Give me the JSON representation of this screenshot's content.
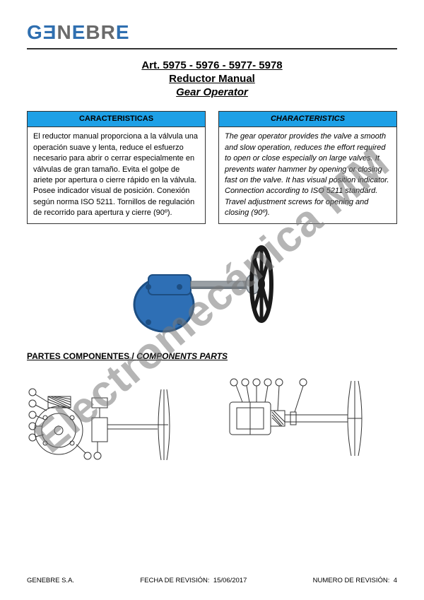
{
  "watermark": {
    "text": "Electromecánica MM",
    "color": "rgba(120,120,120,0.55)"
  },
  "logo": {
    "text_parts": [
      "G",
      "Ǝ",
      "N",
      "E",
      "B",
      "R",
      "E"
    ],
    "colors": {
      "primary": "#2f6fb0",
      "alt": "#6a6a6a"
    },
    "font_size": 28
  },
  "title": {
    "line1": "Art.  5975 - 5976 - 5977- 5978",
    "line2": "Reductor Manual",
    "line3": "Gear Operator"
  },
  "columns": {
    "header_bg": "#1ea0e6",
    "left": {
      "header": "CARACTERISTICAS",
      "body": "El reductor manual proporciona a la válvula una operación suave y lenta, reduce el esfuerzo necesario para abrir o cerrar especialmente en válvulas de gran tamaño. Evita el golpe de ariete por apertura o cierre rápido en la válvula. Posee indicador visual de posición. Conexión según norma ISO 5211. Tornillos de regulación de recorrido para apertura y cierre (90º)."
    },
    "right": {
      "header": "CHARACTERISTICS",
      "body": "The gear operator provides the valve a smooth and slow operation, reduces the effort required to open or close especially on large valves. It prevents water hammer by opening or closing fast on the valve. It has visual position indicator. Connection according to ISO 5211 standard. Travel adjustment screws for opening and closing (90º)."
    }
  },
  "product_figure": {
    "gearbox_color": "#2e6fb5",
    "gearbox_shadow": "#1d4e82",
    "wheel_color": "#1a1a1a",
    "shaft_color": "#9aa0a5",
    "hub_color": "#b8bfc4"
  },
  "section_heading": {
    "es": "PARTES COMPONENTES",
    "sep": " / ",
    "en": "COMPONENTS PARTS"
  },
  "tech_drawing": {
    "stroke": "#333333",
    "fill": "#ffffff"
  },
  "footer": {
    "left": "GENEBRE S.A.",
    "mid_label": "FECHA DE REVISIÓN:",
    "mid_value": "15/06/2017",
    "right_label": "NUMERO DE REVISIÓN:",
    "right_value": "4"
  }
}
